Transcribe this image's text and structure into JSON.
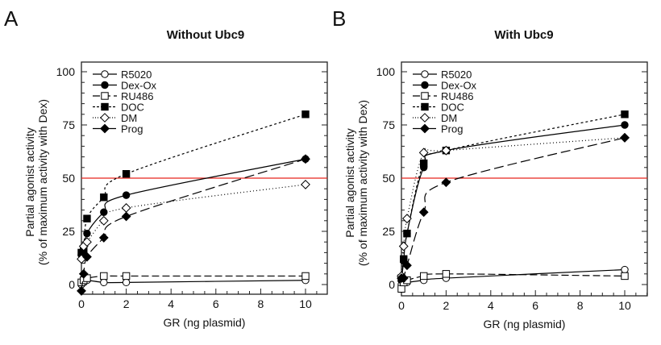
{
  "chart_data": [
    {
      "type": "line",
      "panel_label": "A",
      "title": "Without Ubc9",
      "xlabel": "GR (ng plasmid)",
      "ylabel": "Partial agonist activity",
      "ylabel2": "(% of maximum activity with Dex)",
      "xlim": [
        0,
        11
      ],
      "ylim": [
        -5,
        105
      ],
      "xticks": [
        0,
        2,
        4,
        6,
        8,
        10
      ],
      "yticks": [
        0,
        25,
        50,
        75,
        100
      ],
      "legend_position": "top-left",
      "reference_line": {
        "y": 50,
        "color": "#e8261f"
      },
      "x": [
        0,
        0.1,
        0.25,
        1,
        2,
        10
      ],
      "series": [
        {
          "name": "R5020",
          "marker": "open-circle",
          "line": "solid",
          "values": [
            0,
            1,
            2,
            1,
            1,
            2
          ]
        },
        {
          "name": "Dex-Ox",
          "marker": "filled-circle",
          "line": "solid",
          "values": [
            14,
            15,
            24,
            34,
            42,
            59
          ]
        },
        {
          "name": "RU486",
          "marker": "open-square",
          "line": "long-dash",
          "values": [
            1,
            2,
            3,
            4,
            4,
            4
          ]
        },
        {
          "name": "DOC",
          "marker": "filled-square",
          "line": "short-dash",
          "values": [
            15,
            16,
            31,
            41,
            52,
            80
          ]
        },
        {
          "name": "DM",
          "marker": "open-diamond",
          "line": "dotted",
          "values": [
            12,
            18,
            20,
            30,
            36,
            47
          ]
        },
        {
          "name": "Prog",
          "marker": "filled-diamond",
          "line": "dash-dot",
          "values": [
            -3,
            5,
            13,
            22,
            32,
            59
          ]
        }
      ]
    },
    {
      "type": "line",
      "panel_label": "B",
      "title": "With Ubc9",
      "xlabel": "GR (ng plasmid)",
      "ylabel": "Partial agonist activity",
      "ylabel2": "(% of maximum activity with Dex)",
      "xlim": [
        0,
        11
      ],
      "ylim": [
        -5,
        105
      ],
      "xticks": [
        0,
        2,
        4,
        6,
        8,
        10
      ],
      "yticks": [
        0,
        25,
        50,
        75,
        100
      ],
      "legend_position": "top-left",
      "reference_line": {
        "y": 50,
        "color": "#e8261f"
      },
      "x": [
        0,
        0.1,
        0.25,
        1,
        2,
        10
      ],
      "series": [
        {
          "name": "R5020",
          "marker": "open-circle",
          "line": "solid",
          "values": [
            0,
            1,
            1,
            2,
            3,
            7
          ]
        },
        {
          "name": "Dex-Ox",
          "marker": "filled-circle",
          "line": "solid",
          "values": [
            2,
            11,
            24,
            55,
            63,
            75
          ]
        },
        {
          "name": "RU486",
          "marker": "open-square",
          "line": "long-dash",
          "values": [
            -2,
            1,
            2,
            4,
            5,
            4
          ]
        },
        {
          "name": "DOC",
          "marker": "filled-square",
          "line": "short-dash",
          "values": [
            3,
            12,
            24,
            57,
            63,
            80
          ]
        },
        {
          "name": "DM",
          "marker": "open-diamond",
          "line": "dotted",
          "values": [
            4,
            18,
            31,
            62,
            63,
            69
          ]
        },
        {
          "name": "Prog",
          "marker": "filled-diamond",
          "line": "dash-dot",
          "values": [
            3,
            3,
            9,
            34,
            48,
            69
          ]
        }
      ]
    }
  ]
}
